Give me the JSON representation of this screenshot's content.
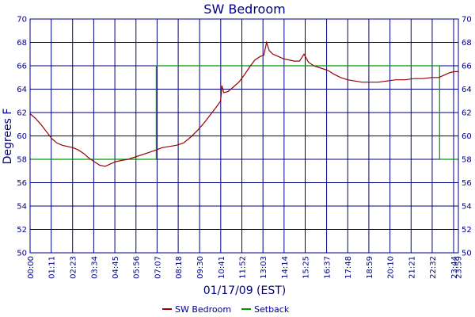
{
  "chart_data": {
    "type": "line",
    "title": "SW Bedroom",
    "xlabel": "01/17/09 (EST)",
    "ylabel": "Degrees F",
    "ylim": [
      50,
      70
    ],
    "yticks": [
      50,
      52,
      54,
      56,
      58,
      60,
      62,
      64,
      66,
      68,
      70
    ],
    "xlim_hours": [
      0,
      24
    ],
    "xticks": [
      "00:00",
      "01:11",
      "02:23",
      "03:34",
      "04:45",
      "05:56",
      "07:07",
      "08:18",
      "09:30",
      "10:41",
      "11:52",
      "13:03",
      "14:14",
      "15:25",
      "16:37",
      "17:48",
      "18:59",
      "20:10",
      "21:21",
      "22:32",
      "23:44",
      "23:59"
    ],
    "grid": true,
    "legend_position": "bottom",
    "series": [
      {
        "name": "SW Bedroom",
        "color": "#990000",
        "points": [
          [
            0.0,
            61.9
          ],
          [
            0.3,
            61.5
          ],
          [
            0.6,
            61.0
          ],
          [
            0.9,
            60.4
          ],
          [
            1.2,
            59.8
          ],
          [
            1.5,
            59.4
          ],
          [
            1.8,
            59.2
          ],
          [
            2.1,
            59.1
          ],
          [
            2.4,
            59.0
          ],
          [
            2.7,
            58.8
          ],
          [
            3.0,
            58.5
          ],
          [
            3.3,
            58.1
          ],
          [
            3.6,
            57.8
          ],
          [
            3.9,
            57.5
          ],
          [
            4.2,
            57.4
          ],
          [
            4.5,
            57.6
          ],
          [
            4.8,
            57.8
          ],
          [
            5.1,
            57.9
          ],
          [
            5.5,
            58.0
          ],
          [
            5.9,
            58.2
          ],
          [
            6.3,
            58.4
          ],
          [
            6.7,
            58.6
          ],
          [
            7.07,
            58.8
          ],
          [
            7.4,
            59.0
          ],
          [
            7.8,
            59.1
          ],
          [
            8.2,
            59.2
          ],
          [
            8.6,
            59.4
          ],
          [
            9.0,
            59.9
          ],
          [
            9.4,
            60.5
          ],
          [
            9.8,
            61.2
          ],
          [
            10.2,
            62.0
          ],
          [
            10.5,
            62.6
          ],
          [
            10.68,
            63.0
          ],
          [
            10.75,
            64.3
          ],
          [
            10.85,
            63.7
          ],
          [
            11.1,
            63.8
          ],
          [
            11.4,
            64.2
          ],
          [
            11.7,
            64.6
          ],
          [
            12.0,
            65.2
          ],
          [
            12.3,
            65.9
          ],
          [
            12.6,
            66.5
          ],
          [
            12.9,
            66.8
          ],
          [
            13.1,
            66.9
          ],
          [
            13.25,
            68.0
          ],
          [
            13.4,
            67.3
          ],
          [
            13.6,
            67.0
          ],
          [
            13.9,
            66.8
          ],
          [
            14.2,
            66.6
          ],
          [
            14.5,
            66.5
          ],
          [
            14.8,
            66.4
          ],
          [
            15.1,
            66.4
          ],
          [
            15.35,
            67.0
          ],
          [
            15.6,
            66.3
          ],
          [
            15.9,
            66.0
          ],
          [
            16.3,
            65.8
          ],
          [
            16.7,
            65.6
          ],
          [
            17.0,
            65.3
          ],
          [
            17.4,
            65.0
          ],
          [
            17.8,
            64.8
          ],
          [
            18.2,
            64.7
          ],
          [
            18.6,
            64.6
          ],
          [
            19.0,
            64.6
          ],
          [
            19.5,
            64.6
          ],
          [
            20.0,
            64.7
          ],
          [
            20.5,
            64.8
          ],
          [
            21.0,
            64.8
          ],
          [
            21.5,
            64.9
          ],
          [
            22.0,
            64.9
          ],
          [
            22.5,
            65.0
          ],
          [
            22.9,
            65.0
          ],
          [
            23.2,
            65.2
          ],
          [
            23.5,
            65.4
          ],
          [
            23.75,
            65.5
          ],
          [
            23.99,
            65.5
          ]
        ]
      },
      {
        "name": "Setback",
        "color": "#009900",
        "points": [
          [
            0.0,
            58.0
          ],
          [
            7.07,
            58.0
          ],
          [
            7.07,
            66.0
          ],
          [
            22.95,
            66.0
          ],
          [
            22.95,
            58.0
          ],
          [
            23.99,
            58.0
          ]
        ]
      }
    ]
  }
}
